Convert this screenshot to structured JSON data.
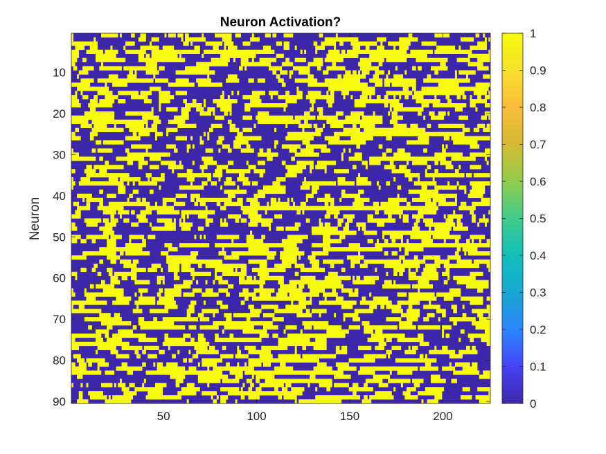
{
  "chart_data": {
    "type": "heatmap",
    "title": "Neuron Activation?",
    "xlabel": "",
    "ylabel": "Neuron",
    "rows": 90,
    "cols": 225,
    "xlim": [
      0.5,
      225.5
    ],
    "ylim": [
      0.5,
      90.5
    ],
    "y_reversed": true,
    "x_ticks": [
      50,
      100,
      150,
      200
    ],
    "x_tick_labels": [
      "50",
      "100",
      "150",
      "200"
    ],
    "y_ticks": [
      10,
      20,
      30,
      40,
      50,
      60,
      70,
      80,
      90
    ],
    "y_tick_labels": [
      "10",
      "20",
      "30",
      "40",
      "50",
      "60",
      "70",
      "80",
      "90"
    ],
    "value_levels": [
      0,
      1
    ],
    "grid": false,
    "colorbar": {
      "colormap": "parula",
      "limits": [
        0,
        1
      ],
      "ticks": [
        0,
        0.1,
        0.2,
        0.3,
        0.4,
        0.5,
        0.6,
        0.7,
        0.8,
        0.9,
        1
      ],
      "tick_labels": [
        "0",
        "0.1",
        "0.2",
        "0.3",
        "0.4",
        "0.5",
        "0.6",
        "0.7",
        "0.8",
        "0.9",
        "1"
      ],
      "placement": "right"
    },
    "colors": {
      "low": "#3e26a8",
      "high": "#f9fb0e",
      "stops": [
        "#3e26a8",
        "#4743f8",
        "#2c85fd",
        "#17a7d4",
        "#12beb9",
        "#41cb8a",
        "#91cb4c",
        "#d4bb32",
        "#fbbc3c",
        "#f5e02a",
        "#f9fb0e"
      ]
    }
  }
}
